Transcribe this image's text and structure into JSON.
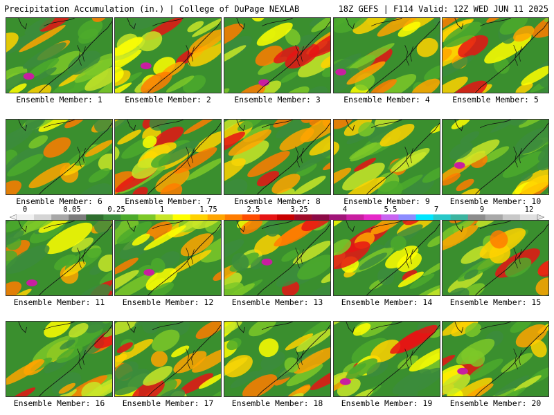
{
  "header": {
    "left": "Precipitation Accumulation (in.) | College of DuPage NEXLAB",
    "right": "18Z GEFS | F114 Valid: 12Z WED JUN 11 2025"
  },
  "panels": [
    {
      "label": "Ensemble Member: 1"
    },
    {
      "label": "Ensemble Member: 2"
    },
    {
      "label": "Ensemble Member: 3"
    },
    {
      "label": "Ensemble Member: 4"
    },
    {
      "label": "Ensemble Member: 5"
    },
    {
      "label": "Ensemble Member: 6"
    },
    {
      "label": "Ensemble Member: 7"
    },
    {
      "label": "Ensemble Member: 8"
    },
    {
      "label": "Ensemble Member: 9"
    },
    {
      "label": "Ensemble Member: 10"
    },
    {
      "label": "Ensemble Member: 11"
    },
    {
      "label": "Ensemble Member: 12"
    },
    {
      "label": "Ensemble Member: 13"
    },
    {
      "label": "Ensemble Member: 14"
    },
    {
      "label": "Ensemble Member: 15"
    },
    {
      "label": "Ensemble Member: 16"
    },
    {
      "label": "Ensemble Member: 17"
    },
    {
      "label": "Ensemble Member: 18"
    },
    {
      "label": "Ensemble Member: 19"
    },
    {
      "label": "Ensemble Member: 20"
    }
  ],
  "colorbar": {
    "tick_labels": [
      "0",
      "0.05",
      "0.25",
      "1",
      "1.75",
      "2.5",
      "3.25",
      "4",
      "5.5",
      "7",
      "9",
      "12"
    ],
    "colors": [
      "#f0f0f0",
      "#d4d4d4",
      "#a8a8a8",
      "#7c7c7c",
      "#2e6e2e",
      "#3c8c3c",
      "#4caa2c",
      "#7cc828",
      "#c8e628",
      "#ffff00",
      "#ffd200",
      "#ffa500",
      "#ff7c00",
      "#ff4c00",
      "#e61414",
      "#c80000",
      "#a00a28",
      "#8c0a46",
      "#a01478",
      "#c81ea0",
      "#e628c8",
      "#c864f0",
      "#8c8cff",
      "#00e6ff",
      "#28c8c8",
      "#3cb4a0",
      "#8c8c8c",
      "#a8a8a8",
      "#c8c8c8",
      "#e0e0e0"
    ]
  }
}
